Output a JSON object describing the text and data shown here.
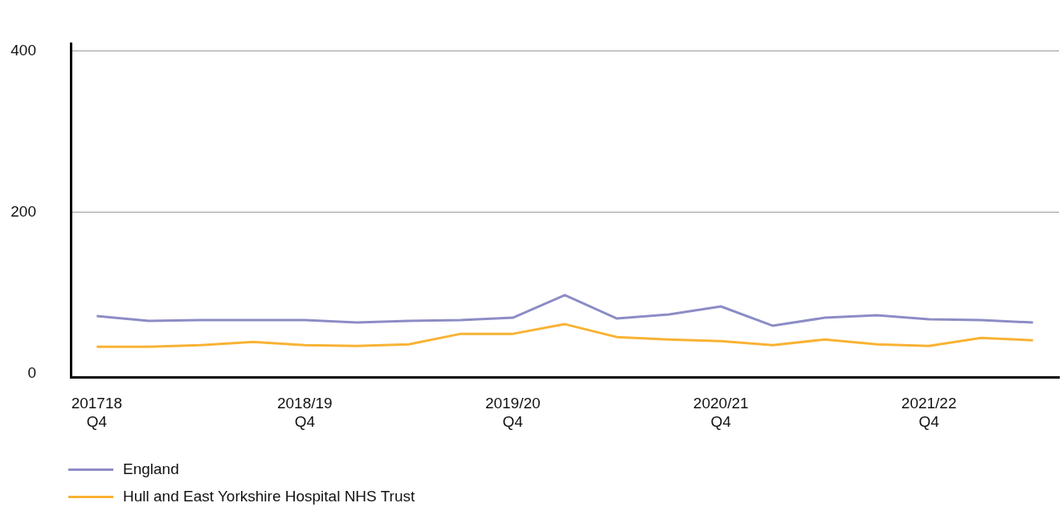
{
  "chart_data": {
    "type": "line",
    "categories": [
      "201718\nQ4",
      null,
      null,
      null,
      "2018/19\nQ4",
      null,
      null,
      null,
      "2019/20\nQ4",
      null,
      null,
      null,
      "2020/21\nQ4",
      null,
      null,
      null,
      "2021/22\nQ4",
      null,
      null
    ],
    "series": [
      {
        "name": "England",
        "color": "#8c8cc6",
        "values": [
          71,
          65,
          66,
          66,
          66,
          63,
          65,
          66,
          69,
          97,
          68,
          73,
          83,
          59,
          69,
          72,
          67,
          66,
          63
        ]
      },
      {
        "name": "Hull and East Yorkshire Hospital NHS Trust",
        "color": "#f9b233",
        "values": [
          33,
          33,
          35,
          39,
          35,
          34,
          36,
          49,
          49,
          61,
          45,
          42,
          40,
          35,
          42,
          36,
          34,
          44,
          41
        ]
      }
    ],
    "ylim": [
      -5,
      409
    ],
    "yticks": [
      0,
      200,
      400
    ],
    "grid": "y",
    "legend": "bottom",
    "marker": "none",
    "line_style": "solid"
  }
}
